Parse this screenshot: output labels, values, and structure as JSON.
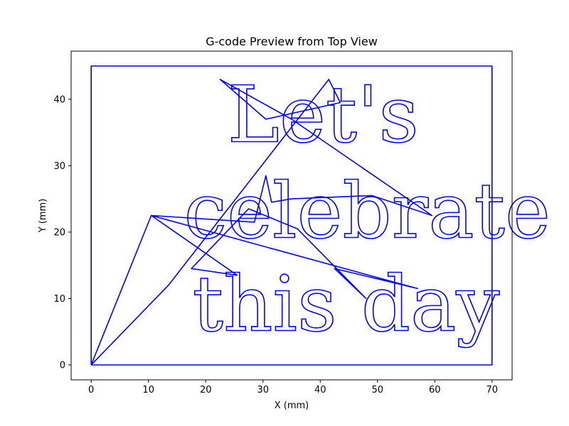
{
  "chart_data": {
    "type": "line",
    "title": "G-code Preview from Top View",
    "xlabel": "X (mm)",
    "ylabel": "Y (mm)",
    "xlim": [
      -3.5,
      73.5
    ],
    "ylim": [
      -2.25,
      47.25
    ],
    "xticks": [
      0,
      10,
      20,
      30,
      40,
      50,
      60,
      70
    ],
    "yticks": [
      0,
      10,
      20,
      30,
      40
    ],
    "color": "#0000ff",
    "series": [
      {
        "name": "border",
        "x": [
          0,
          70,
          70,
          0,
          0
        ],
        "y": [
          0,
          0,
          45,
          45,
          0
        ]
      },
      {
        "name": "travel-moves",
        "x": [
          0,
          13.5,
          41.5,
          43.5,
          30.5,
          22.5,
          35,
          59.5,
          49,
          35,
          31.5,
          30.5,
          28.5,
          10.5,
          57,
          42.5,
          48,
          36,
          27.5,
          17.5,
          25.5,
          10.5,
          0
        ],
        "y": [
          0,
          12,
          43,
          39.5,
          37,
          43,
          37,
          22.5,
          25.5,
          25,
          24.5,
          28.5,
          21.5,
          22.5,
          11.5,
          14.5,
          10,
          20.5,
          23.5,
          14.5,
          13.5,
          22.5,
          0
        ]
      }
    ],
    "text_lines": [
      {
        "text": "Let's",
        "x": 40.5,
        "y": 33.6
      },
      {
        "text": "celebrate",
        "x": 48.2,
        "y": 19.2
      },
      {
        "text": "this day",
        "x": 44.5,
        "y": 5.2
      }
    ]
  }
}
